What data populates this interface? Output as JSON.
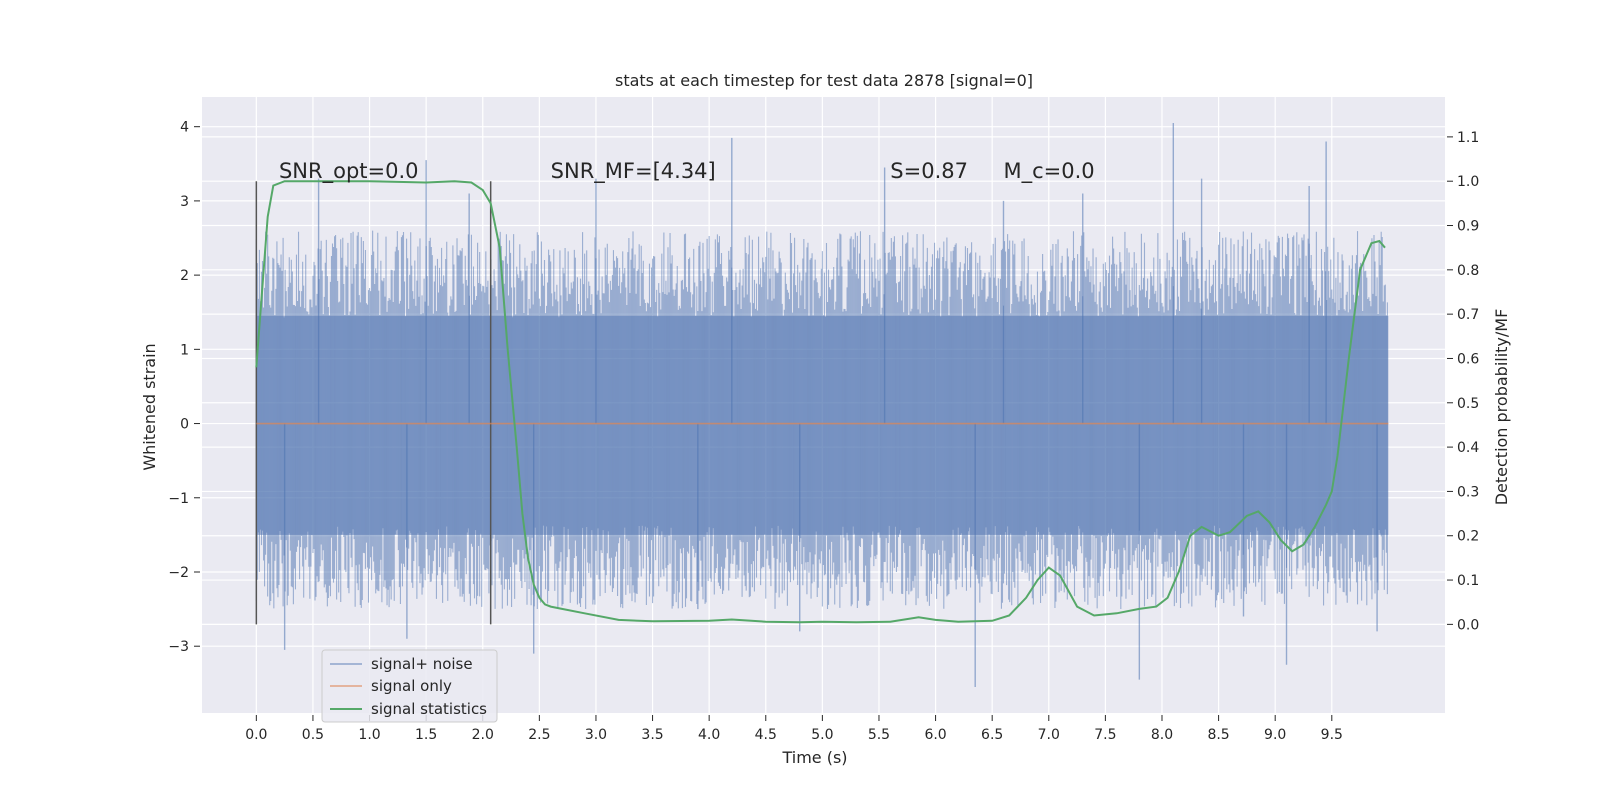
{
  "chart_data": {
    "type": "line",
    "title": "stats at each timestep for test data 2878 [signal=0]",
    "xlabel": "Time (s)",
    "ylabel": "Whitened strain",
    "y2label": "Detection probability/MF",
    "xlim": [
      -0.48,
      10.5
    ],
    "ylim": [
      -3.9,
      4.4
    ],
    "y2lim": [
      -0.2,
      1.19
    ],
    "xticks": [
      "0.0",
      "0.5",
      "1.0",
      "1.5",
      "2.0",
      "2.5",
      "3.0",
      "3.5",
      "4.0",
      "4.5",
      "5.0",
      "5.5",
      "6.0",
      "6.5",
      "7.0",
      "7.5",
      "8.0",
      "8.5",
      "9.0",
      "9.5"
    ],
    "yticks": [
      "−3",
      "−2",
      "−1",
      "0",
      "1",
      "2",
      "3",
      "4"
    ],
    "y2ticks": [
      "0.0",
      "0.1",
      "0.2",
      "0.3",
      "0.4",
      "0.5",
      "0.6",
      "0.7",
      "0.8",
      "0.9",
      "1.0",
      "1.1"
    ],
    "grid": true,
    "legend_position": "lower-left",
    "colors": {
      "background": "#eaeaf2",
      "grid": "#ffffff",
      "noise": "#4c72b0",
      "signal_only": "#dd8452",
      "statistics": "#55a868",
      "vline": "#555555"
    },
    "annotations": [
      {
        "text": "SNR_opt=0.0",
        "x": 0.2,
        "y2": 1.0
      },
      {
        "text": "SNR_MF=[4.34]",
        "x": 2.6,
        "y2": 1.0
      },
      {
        "text": "S=0.87",
        "x": 5.6,
        "y2": 1.0
      },
      {
        "text": "M_c=0.0",
        "x": 6.6,
        "y2": 1.0
      }
    ],
    "vlines": [
      0.0,
      2.07
    ],
    "series": [
      {
        "name": "signal+ noise",
        "kind": "noise",
        "x_range": [
          0.0,
          10.0
        ],
        "envelope_upper": 2.6,
        "envelope_lower": -2.5,
        "spikes": [
          {
            "x": 0.55,
            "y": 3.3
          },
          {
            "x": 1.5,
            "y": 3.55
          },
          {
            "x": 1.33,
            "y": -2.9
          },
          {
            "x": 0.25,
            "y": -3.05
          },
          {
            "x": 2.45,
            "y": -3.1
          },
          {
            "x": 3.0,
            "y": 3.3
          },
          {
            "x": 4.2,
            "y": 3.85
          },
          {
            "x": 5.55,
            "y": 3.45
          },
          {
            "x": 6.35,
            "y": -3.55
          },
          {
            "x": 7.8,
            "y": -3.45
          },
          {
            "x": 8.1,
            "y": 4.05
          },
          {
            "x": 8.72,
            "y": -2.6
          },
          {
            "x": 9.1,
            "y": -3.25
          },
          {
            "x": 9.45,
            "y": 3.8
          },
          {
            "x": 9.3,
            "y": 3.2
          },
          {
            "x": 6.6,
            "y": 3.0
          },
          {
            "x": 7.3,
            "y": 3.1
          },
          {
            "x": 3.9,
            "y": -2.5
          },
          {
            "x": 4.8,
            "y": -2.8
          },
          {
            "x": 9.9,
            "y": -2.8
          },
          {
            "x": 8.35,
            "y": 3.3
          },
          {
            "x": 1.88,
            "y": 3.1
          }
        ]
      },
      {
        "name": "signal only",
        "kind": "flat",
        "x": [
          0.0,
          10.0
        ],
        "y": [
          0.0,
          0.0
        ]
      },
      {
        "name": "signal statistics",
        "kind": "line",
        "axis": "right",
        "x": [
          0.0,
          0.05,
          0.1,
          0.15,
          0.25,
          0.5,
          1.0,
          1.5,
          1.75,
          1.9,
          2.0,
          2.07,
          2.15,
          2.22,
          2.3,
          2.35,
          2.4,
          2.45,
          2.5,
          2.55,
          2.6,
          2.7,
          2.9,
          3.2,
          3.5,
          4.0,
          4.2,
          4.5,
          4.8,
          5.0,
          5.3,
          5.6,
          5.85,
          6.0,
          6.2,
          6.5,
          6.65,
          6.8,
          6.9,
          7.0,
          7.1,
          7.25,
          7.4,
          7.6,
          7.8,
          7.95,
          8.05,
          8.15,
          8.25,
          8.35,
          8.5,
          8.6,
          8.75,
          8.85,
          8.95,
          9.05,
          9.15,
          9.25,
          9.35,
          9.45,
          9.5,
          9.55,
          9.65,
          9.75,
          9.85,
          9.92,
          9.97
        ],
        "y": [
          0.58,
          0.75,
          0.92,
          0.99,
          1.0,
          1.0,
          1.0,
          0.997,
          1.0,
          0.997,
          0.98,
          0.95,
          0.85,
          0.62,
          0.4,
          0.25,
          0.15,
          0.09,
          0.06,
          0.045,
          0.04,
          0.035,
          0.025,
          0.01,
          0.007,
          0.008,
          0.011,
          0.006,
          0.005,
          0.006,
          0.005,
          0.006,
          0.016,
          0.01,
          0.006,
          0.008,
          0.02,
          0.06,
          0.1,
          0.128,
          0.11,
          0.04,
          0.02,
          0.025,
          0.035,
          0.04,
          0.06,
          0.12,
          0.2,
          0.22,
          0.2,
          0.208,
          0.245,
          0.255,
          0.23,
          0.19,
          0.165,
          0.18,
          0.22,
          0.27,
          0.3,
          0.38,
          0.6,
          0.8,
          0.86,
          0.865,
          0.85
        ]
      }
    ]
  }
}
